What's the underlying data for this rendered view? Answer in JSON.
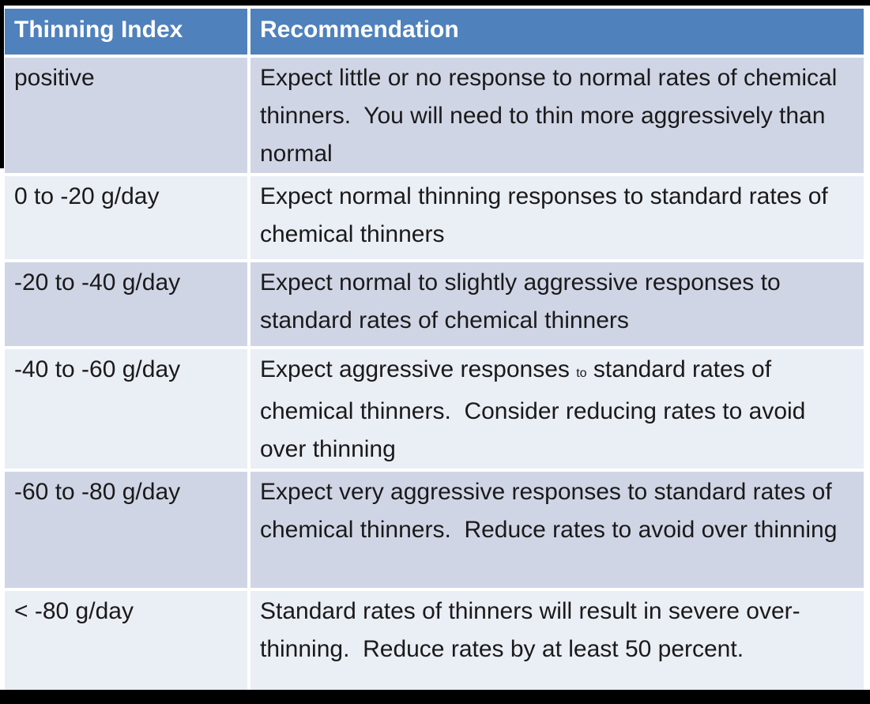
{
  "table": {
    "columns": [
      {
        "label": "Thinning Index"
      },
      {
        "label": "Recommendation"
      }
    ],
    "rows": [
      {
        "index": "positive",
        "recommendation": [
          {
            "text": "Expect little or no response to normal rates of chemical thinners.  You will need to thin more aggressively than normal",
            "small": false
          }
        ]
      },
      {
        "index": "0 to -20 g/day",
        "recommendation": [
          {
            "text": "Expect normal thinning responses to standard rates of chemical thinners",
            "small": false
          }
        ]
      },
      {
        "index": "-20 to -40 g/day",
        "recommendation": [
          {
            "text": "Expect normal to slightly aggressive responses to standard rates of chemical thinners",
            "small": false
          }
        ]
      },
      {
        "index": "-40 to -60 g/day",
        "recommendation": [
          {
            "text": "Expect aggressive responses ",
            "small": false
          },
          {
            "text": "to",
            "small": true
          },
          {
            "text": " standard rates of chemical thinners.  Consider reducing rates to avoid over thinning",
            "small": false
          }
        ]
      },
      {
        "index": "-60 to -80 g/day",
        "recommendation": [
          {
            "text": "Expect very aggressive responses to standard rates of chemical thinners.  Reduce rates to avoid over thinning",
            "small": false
          }
        ]
      },
      {
        "index": "< -80 g/day",
        "recommendation": [
          {
            "text": "Standard rates of thinners will result in severe over-thinning.  Reduce rates by at least 50 percent.",
            "small": false
          }
        ]
      }
    ],
    "colors": {
      "header_bg": "#4f81bd",
      "header_text": "#ffffff",
      "row_odd_bg": "#d0d5e6",
      "row_even_bg": "#eaeef5",
      "body_text": "#1a1a1a",
      "cell_gap": "#ffffff",
      "frame": "#000000"
    }
  }
}
